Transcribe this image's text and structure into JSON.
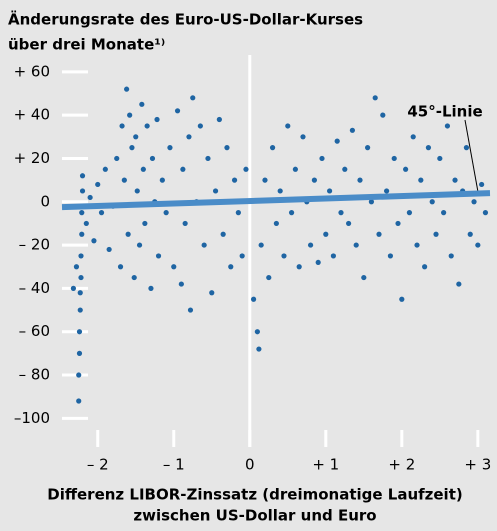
{
  "chart_data": {
    "type": "scatter",
    "title": [
      "Änderungsrate des Euro-US-Dollar-Kurses",
      "über drei Monate¹⁾"
    ],
    "x_label": [
      "Differenz LIBOR-Zinssatz (dreimonatige Laufzeit)",
      "zwischen US-Dollar und Euro"
    ],
    "xlim": [
      -2.47,
      3.16
    ],
    "ylim": [
      -110,
      65
    ],
    "xticks": [
      {
        "value": -2,
        "label": "– 2"
      },
      {
        "value": -1,
        "label": "– 1"
      },
      0,
      {
        "value": 1,
        "label": "+ 1"
      },
      {
        "value": 2,
        "label": "+ 2"
      },
      {
        "value": 3,
        "label": "+ 3"
      }
    ],
    "yticks": [
      {
        "value": 60,
        "label": "+ 60"
      },
      {
        "value": 40,
        "label": "+ 40"
      },
      {
        "value": 20,
        "label": "+ 20"
      },
      0,
      {
        "value": -20,
        "label": "– 20"
      },
      {
        "value": -40,
        "label": "– 40"
      },
      {
        "value": -60,
        "label": "– 60"
      },
      {
        "value": -80,
        "label": "– 80"
      },
      {
        "value": -100,
        "label": "–100"
      }
    ],
    "zero_line": true,
    "series": [
      {
        "color": "#1f65a3",
        "x": [
          -2.32,
          -2.28,
          -2.25,
          -2.25,
          -2.24,
          -2.24,
          -2.23,
          -2.23,
          -2.22,
          -2.22,
          -2.21,
          -2.21,
          -2.2,
          -2.2,
          -2.15,
          -2.1,
          -2.05,
          -2.0,
          -1.95,
          -1.9,
          -1.85,
          -1.8,
          -1.75,
          -1.7,
          -1.68,
          -1.65,
          -1.62,
          -1.6,
          -1.58,
          -1.55,
          -1.52,
          -1.5,
          -1.48,
          -1.45,
          -1.42,
          -1.4,
          -1.38,
          -1.35,
          -1.3,
          -1.28,
          -1.25,
          -1.22,
          -1.2,
          -1.15,
          -1.1,
          -1.05,
          -1.0,
          -0.95,
          -0.9,
          -0.88,
          -0.85,
          -0.8,
          -0.78,
          -0.75,
          -0.7,
          -0.65,
          -0.6,
          -0.55,
          -0.5,
          -0.45,
          -0.4,
          -0.35,
          -0.3,
          -0.25,
          -0.2,
          -0.15,
          -0.1,
          -0.05,
          0.05,
          0.1,
          0.12,
          0.15,
          0.2,
          0.25,
          0.3,
          0.35,
          0.4,
          0.45,
          0.5,
          0.55,
          0.6,
          0.65,
          0.7,
          0.75,
          0.8,
          0.85,
          0.9,
          0.95,
          1.0,
          1.05,
          1.1,
          1.15,
          1.2,
          1.25,
          1.3,
          1.35,
          1.4,
          1.45,
          1.5,
          1.55,
          1.6,
          1.65,
          1.7,
          1.75,
          1.8,
          1.85,
          1.9,
          1.95,
          2.0,
          2.05,
          2.1,
          2.15,
          2.2,
          2.25,
          2.3,
          2.35,
          2.4,
          2.45,
          2.5,
          2.55,
          2.6,
          2.65,
          2.7,
          2.75,
          2.8,
          2.85,
          2.9,
          2.95,
          3.0,
          3.05,
          3.1
        ],
        "values": [
          -40,
          -30,
          -92,
          -80,
          -70,
          -60,
          -50,
          -42,
          -35,
          -25,
          -15,
          -5,
          5,
          12,
          -10,
          2,
          -18,
          8,
          -5,
          15,
          -22,
          -2,
          20,
          -30,
          35,
          10,
          52,
          -15,
          40,
          25,
          -35,
          30,
          5,
          -20,
          45,
          15,
          -10,
          35,
          -40,
          20,
          0,
          38,
          -25,
          10,
          -5,
          25,
          -30,
          42,
          -38,
          15,
          -10,
          30,
          -50,
          48,
          0,
          35,
          -20,
          20,
          -42,
          5,
          38,
          -15,
          25,
          -30,
          10,
          -5,
          -25,
          15,
          -45,
          -60,
          -68,
          -20,
          10,
          -35,
          25,
          -10,
          5,
          -25,
          35,
          -5,
          15,
          -30,
          30,
          0,
          -20,
          10,
          -28,
          20,
          -15,
          5,
          -25,
          28,
          -5,
          15,
          -10,
          33,
          -20,
          10,
          -35,
          25,
          0,
          48,
          -15,
          40,
          5,
          -25,
          20,
          -10,
          -45,
          15,
          -5,
          30,
          -20,
          10,
          -30,
          25,
          0,
          -15,
          20,
          -5,
          35,
          -25,
          10,
          -38,
          5,
          25,
          -15,
          0,
          -20,
          8,
          -5
        ]
      },
      {
        "type": "line",
        "name": "45°-Linie",
        "color": "#4a8cc8",
        "x": [
          -2.47,
          3.16
        ],
        "values": [
          -2.5,
          4
        ]
      }
    ]
  }
}
